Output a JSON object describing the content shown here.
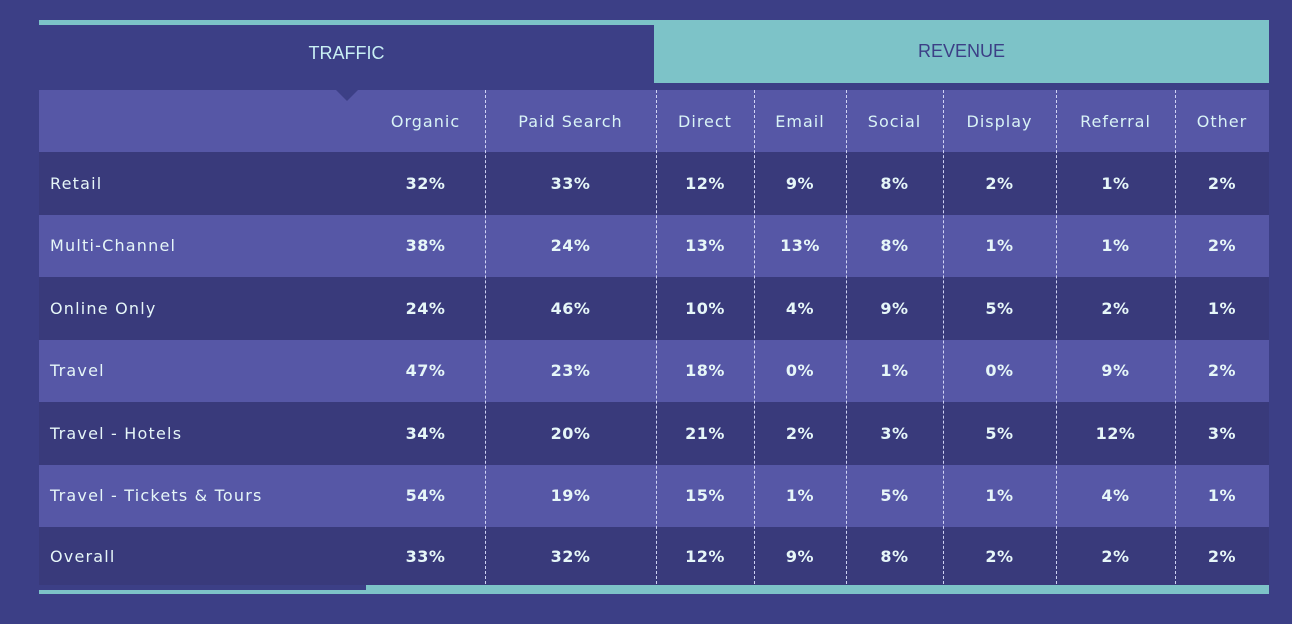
{
  "tabs": {
    "traffic": "TRAFFIC",
    "revenue": "REVENUE"
  },
  "columns": [
    "Organic",
    "Paid  Search",
    "Direct",
    "Email",
    "Social",
    "Display",
    "Referral",
    "Other"
  ],
  "rows": [
    {
      "label": "Retail",
      "values": [
        "32%",
        "33%",
        "12%",
        "9%",
        "8%",
        "2%",
        "1%",
        "2%"
      ]
    },
    {
      "label": "Multi-Channel",
      "values": [
        "38%",
        "24%",
        "13%",
        "13%",
        "8%",
        "1%",
        "1%",
        "2%"
      ]
    },
    {
      "label": "Online  Only",
      "values": [
        "24%",
        "46%",
        "10%",
        "4%",
        "9%",
        "5%",
        "2%",
        "1%"
      ]
    },
    {
      "label": "Travel",
      "values": [
        "47%",
        "23%",
        "18%",
        "0%",
        "1%",
        "0%",
        "9%",
        "2%"
      ]
    },
    {
      "label": "Travel  -  Hotels",
      "values": [
        "34%",
        "20%",
        "21%",
        "2%",
        "3%",
        "5%",
        "12%",
        "3%"
      ]
    },
    {
      "label": "Travel  -  Tickets  &  Tours",
      "values": [
        "54%",
        "19%",
        "15%",
        "1%",
        "5%",
        "1%",
        "4%",
        "1%"
      ]
    },
    {
      "label": "Overall",
      "values": [
        "33%",
        "32%",
        "12%",
        "9%",
        "8%",
        "2%",
        "2%",
        "2%"
      ]
    }
  ],
  "colors": {
    "background": "#3c3f86",
    "accent": "#7dc3c8",
    "row_dark": "#393a7b",
    "row_light": "#5657a6"
  }
}
